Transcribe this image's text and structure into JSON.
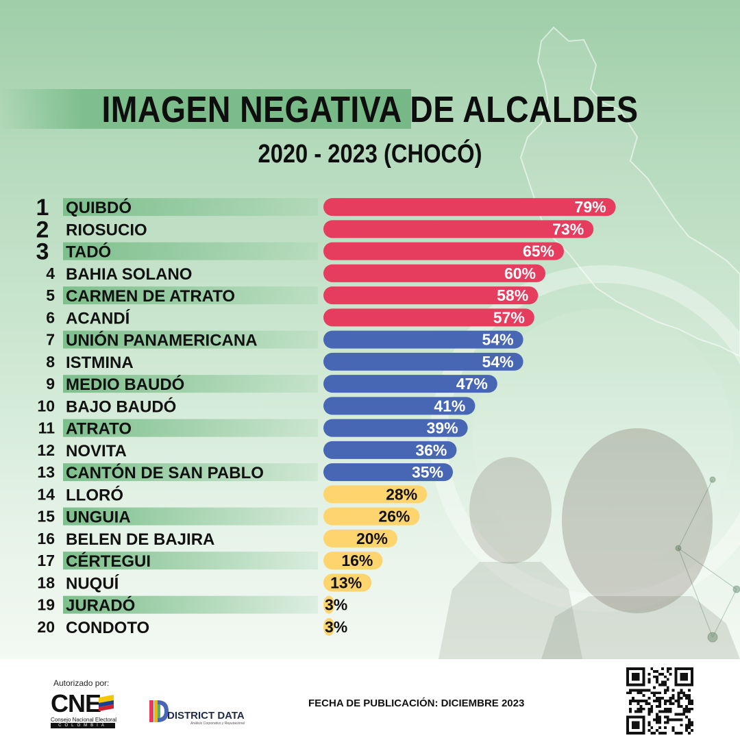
{
  "header": {
    "title": "IMAGEN NEGATIVA DE ALCALDES",
    "subtitle": "2020 - 2023 (CHOCÓ)"
  },
  "colors": {
    "high": "#e63d5f",
    "mid": "#4766b4",
    "low": "#fdd46d",
    "row_band": "#7dbf8c"
  },
  "chart_data": {
    "type": "bar",
    "orientation": "horizontal",
    "title": "IMAGEN NEGATIVA DE ALCALDES",
    "subtitle": "2020 - 2023 (CHOCÓ)",
    "ranks": [
      "1",
      "2",
      "3",
      "4",
      "5",
      "6",
      "7",
      "8",
      "9",
      "10",
      "11",
      "12",
      "13",
      "14",
      "15",
      "16",
      "17",
      "18",
      "19",
      "20"
    ],
    "categories": [
      "QUIBDÓ",
      "RIOSUCIO",
      "TADÓ",
      "BAHIA SOLANO",
      "CARMEN DE ATRATO",
      "ACANDÍ",
      "UNIÓN PANAMERICANA",
      "ISTMINA",
      "MEDIO BAUDÓ",
      "BAJO BAUDÓ",
      "ATRATO",
      "NOVITA",
      "CANTÓN DE SAN PABLO",
      "LLORÓ",
      "UNGUIA",
      "BELEN DE BAJIRA",
      "CÉRTEGUI",
      "NUQUÍ",
      "JURADÓ",
      "CONDOTO"
    ],
    "values": [
      79,
      73,
      65,
      60,
      58,
      57,
      54,
      54,
      47,
      41,
      39,
      36,
      35,
      28,
      26,
      20,
      16,
      13,
      3,
      3
    ],
    "value_labels": [
      "79%",
      "73%",
      "65%",
      "60%",
      "58%",
      "57%",
      "54%",
      "54%",
      "47%",
      "41%",
      "39%",
      "36%",
      "35%",
      "28%",
      "26%",
      "20%",
      "16%",
      "13%",
      "3%",
      "3%"
    ],
    "groups": [
      "high",
      "high",
      "high",
      "high",
      "high",
      "high",
      "mid",
      "mid",
      "mid",
      "mid",
      "mid",
      "mid",
      "mid",
      "low",
      "low",
      "low",
      "low",
      "low",
      "low",
      "low"
    ],
    "xlim": [
      0,
      100
    ],
    "unit": "%",
    "grid": false,
    "legend": "none"
  },
  "footer": {
    "authorized_by": "Autorizado por:",
    "cne_letters": "CNE",
    "cne_name": "Consejo Nacional Electoral",
    "cne_country": "COLOMBIA",
    "brand_name": "DISTRICT DATA",
    "brand_tagline": "Análisis Corporativo y Reputacional",
    "publication_date": "FECHA DE PUBLICACIÓN: DICIEMBRE 2023"
  },
  "icons": {
    "qr": "qr-code-icon",
    "map": "choco-map-outline-icon"
  }
}
